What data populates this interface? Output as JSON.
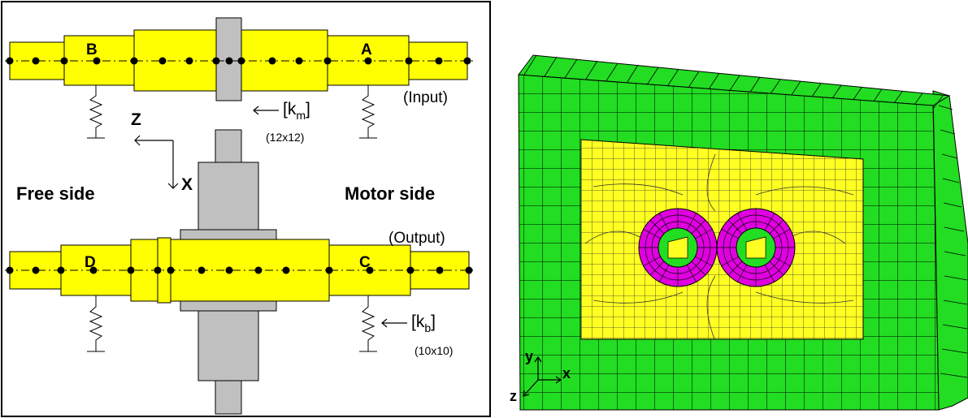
{
  "left_panel": {
    "bearings": {
      "B": "B",
      "A": "A",
      "D": "D",
      "C": "C"
    },
    "labels": {
      "input": "(Input)",
      "output": "(Output)",
      "free_side": "Free side",
      "motor_side": "Motor side"
    },
    "axes": {
      "z": "Z",
      "x": "X"
    },
    "mesh_stiffness": {
      "symbol": "[k",
      "subscript": "m",
      "close": "]",
      "size": "(12x12)"
    },
    "bearing_stiffness": {
      "symbol": "[k",
      "subscript": "b",
      "close": "]",
      "size": "(10x10)"
    }
  },
  "right_panel": {
    "axes": {
      "y": "y",
      "x": "x",
      "z": "z"
    },
    "colors": {
      "housing_frame": "#22dd22",
      "housing_plate": "#ffff22",
      "bearing_rings": "#e000e0",
      "mesh_lines": "#000000"
    }
  },
  "colors": {
    "shaft": "#ffff00",
    "gear": "#c0c0c0",
    "node": "#000000"
  }
}
